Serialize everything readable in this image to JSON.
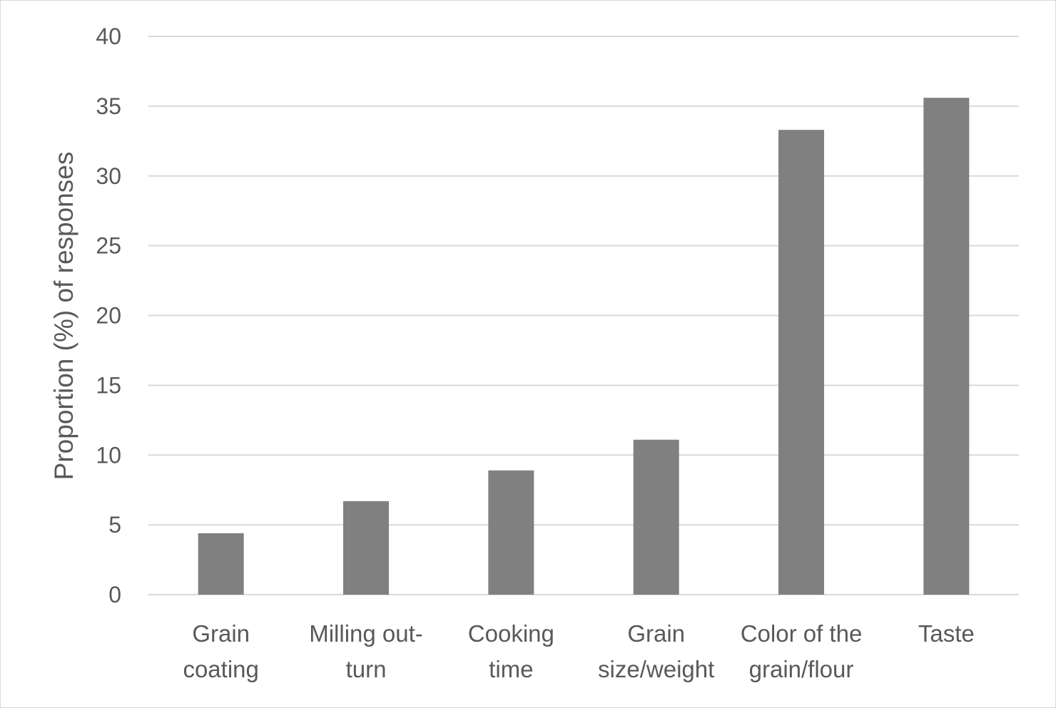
{
  "chart_data": {
    "type": "bar",
    "title": "",
    "xlabel": "",
    "ylabel": "Proportion (%) of responses",
    "ylim": [
      0,
      40
    ],
    "yticks": [
      0,
      5,
      10,
      15,
      20,
      25,
      30,
      35,
      40
    ],
    "grid": true,
    "legend": "none",
    "bar_color": "#808080",
    "categories": [
      [
        "Grain",
        "coating"
      ],
      [
        "Milling out-",
        "turn"
      ],
      [
        "Cooking",
        "time"
      ],
      [
        "Grain",
        "size/weight"
      ],
      [
        "Color of the",
        "grain/flour"
      ],
      [
        "Taste"
      ]
    ],
    "values": [
      4.4,
      6.7,
      8.9,
      11.1,
      33.3,
      35.6
    ]
  }
}
